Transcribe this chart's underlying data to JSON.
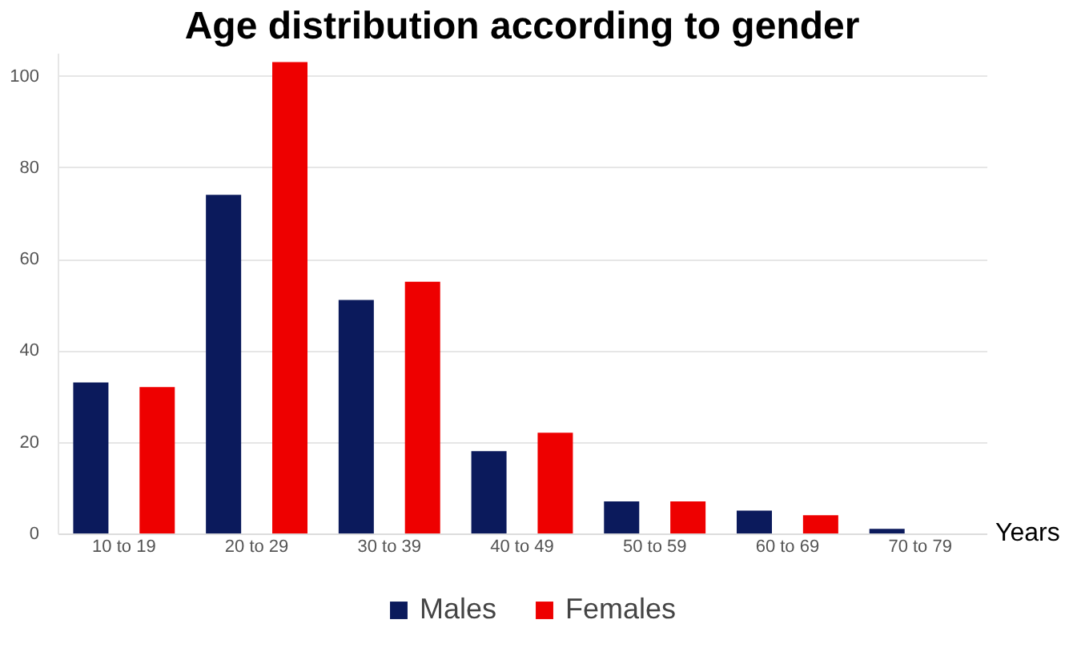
{
  "chart_data": {
    "type": "bar",
    "title": "Age distribution according to gender",
    "xlabel": "Years",
    "categories": [
      "10 to 19",
      "20 to 29",
      "30 to 39",
      "40 to 49",
      "50 to 59",
      "60 to 69",
      "70 to 79"
    ],
    "series": [
      {
        "name": "Males",
        "color": "#0b1a5c",
        "values": [
          33,
          74,
          51,
          18,
          7,
          5,
          1
        ]
      },
      {
        "name": "Females",
        "color": "#ee0000",
        "values": [
          32,
          103,
          55,
          22,
          7,
          4,
          0
        ]
      }
    ],
    "ylim": [
      0,
      105
    ],
    "yticks": [
      0,
      20,
      40,
      60,
      80,
      100
    ],
    "grid": "y",
    "legend": "bottom"
  }
}
